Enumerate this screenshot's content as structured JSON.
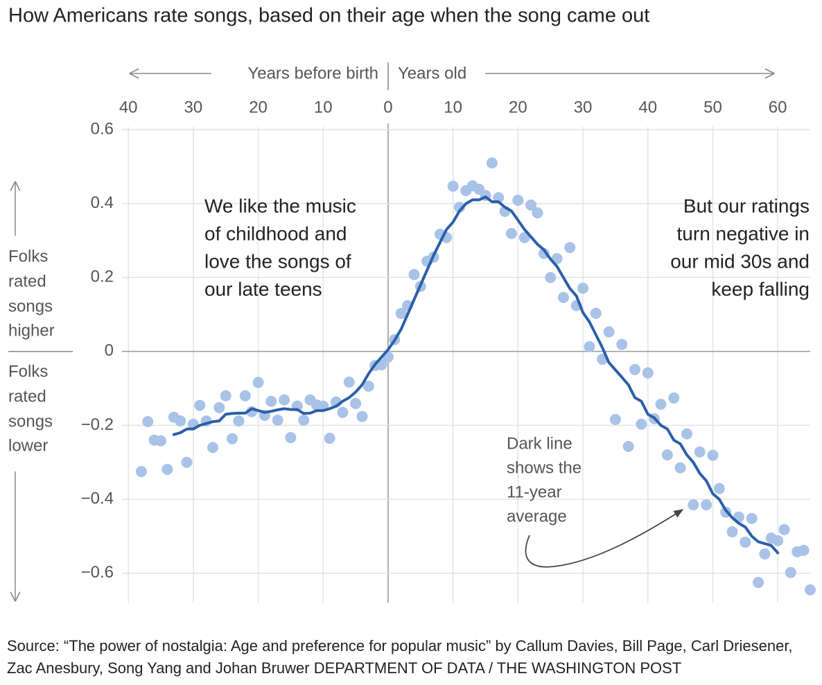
{
  "chart_data": {
    "type": "scatter",
    "title": "How Americans rate songs, based on their age when the song came out",
    "x_label_left": "Years before birth",
    "x_label_right": "Years old",
    "y_label_upper": [
      "Folks",
      "rated",
      "songs",
      "higher"
    ],
    "y_label_lower": [
      "Folks",
      "rated",
      "songs",
      "lower"
    ],
    "annotations": [
      [
        "We like the music",
        "of childhood and",
        "love the songs of",
        "our late teens"
      ],
      [
        "But our ratings",
        "turn negative in",
        "our mid 30s and",
        "keep falling"
      ],
      [
        "Dark line",
        "shows the",
        "11-year",
        "average"
      ]
    ],
    "source": "Source: “The power of nostalgia: Age and preference for popular music” by Callum Davies, Bill Page, Carl Driesener, Zac Anesbury, Song Yang and Johan Bruwer DEPARTMENT OF DATA / THE WASHINGTON POST",
    "xlim": [
      -41,
      65
    ],
    "ylim": [
      -0.68,
      0.6
    ],
    "xticks": [
      {
        "value": -40,
        "label": "40"
      },
      {
        "value": -30,
        "label": "30"
      },
      {
        "value": -20,
        "label": "20"
      },
      {
        "value": -10,
        "label": "10"
      },
      0,
      10,
      20,
      30,
      40,
      50,
      60
    ],
    "yticks": [
      {
        "value": -0.6,
        "label": "−0.6"
      },
      {
        "value": -0.4,
        "label": "−0.4"
      },
      {
        "value": -0.2,
        "label": "−0.2"
      },
      0,
      0.2,
      0.4,
      0.6
    ],
    "grid": true,
    "series": [
      {
        "type": "scatter",
        "color": "#a9c2e7",
        "x": [
          -38,
          -37,
          -36,
          -35,
          -34,
          -33,
          -32,
          -31,
          -30,
          -29,
          -28,
          -27,
          -26,
          -25,
          -24,
          -23,
          -22,
          -21,
          -20,
          -19,
          -18,
          -17,
          -16,
          -15,
          -14,
          -13,
          -12,
          -11,
          -10,
          -9,
          -8,
          -7,
          -6,
          -5,
          -4,
          -3,
          -2,
          -1,
          0,
          1,
          2,
          3,
          4,
          5,
          6,
          7,
          8,
          9,
          10,
          11,
          12,
          13,
          14,
          15,
          16,
          17,
          18,
          19,
          20,
          21,
          22,
          23,
          24,
          25,
          26,
          27,
          28,
          29,
          30,
          31,
          32,
          33,
          34,
          35,
          36,
          37,
          38,
          39,
          40,
          41,
          42,
          43,
          44,
          45,
          46,
          47,
          48,
          49,
          50,
          51,
          52,
          53,
          54,
          55,
          56,
          57,
          58,
          59,
          60,
          61,
          62,
          63,
          64,
          65
        ],
        "values": [
          -0.325,
          -0.19,
          -0.24,
          -0.242,
          -0.319,
          -0.178,
          -0.188,
          -0.3,
          -0.197,
          -0.146,
          -0.188,
          -0.26,
          -0.152,
          -0.12,
          -0.236,
          -0.188,
          -0.12,
          -0.163,
          -0.084,
          -0.173,
          -0.135,
          -0.186,
          -0.131,
          -0.233,
          -0.148,
          -0.186,
          -0.131,
          -0.145,
          -0.148,
          -0.235,
          -0.137,
          -0.165,
          -0.083,
          -0.141,
          -0.176,
          -0.094,
          -0.038,
          -0.036,
          -0.015,
          0.032,
          0.103,
          0.124,
          0.208,
          0.176,
          0.244,
          0.255,
          0.317,
          0.308,
          0.447,
          0.39,
          0.435,
          0.448,
          0.439,
          0.422,
          0.51,
          0.416,
          0.379,
          0.319,
          0.409,
          0.308,
          0.396,
          0.375,
          0.265,
          0.2,
          0.251,
          0.146,
          0.281,
          0.124,
          0.171,
          0.013,
          0.103,
          -0.021,
          0.053,
          -0.184,
          0.019,
          -0.257,
          -0.049,
          -0.197,
          -0.058,
          -0.182,
          -0.143,
          -0.28,
          -0.126,
          -0.315,
          -0.223,
          -0.415,
          -0.272,
          -0.415,
          -0.281,
          -0.371,
          -0.435,
          -0.488,
          -0.448,
          -0.516,
          -0.452,
          -0.625,
          -0.548,
          -0.505,
          -0.512,
          -0.482,
          -0.598,
          -0.542,
          -0.538,
          -0.645
        ]
      },
      {
        "type": "line",
        "color": "#2b5fa8",
        "x": [
          -33,
          -32,
          -31,
          -30,
          -29,
          -28,
          -27,
          -26,
          -25,
          -24,
          -23,
          -22,
          -21,
          -20,
          -19,
          -18,
          -17,
          -16,
          -15,
          -14,
          -13,
          -12,
          -11,
          -10,
          -9,
          -8,
          -7,
          -6,
          -5,
          -4,
          -3,
          -2,
          -1,
          0,
          1,
          2,
          3,
          4,
          5,
          6,
          7,
          8,
          9,
          10,
          11,
          12,
          13,
          14,
          15,
          16,
          17,
          18,
          19,
          20,
          21,
          22,
          23,
          24,
          25,
          26,
          27,
          28,
          29,
          30,
          31,
          32,
          33,
          34,
          35,
          36,
          37,
          38,
          39,
          40,
          41,
          42,
          43,
          44,
          45,
          46,
          47,
          48,
          49,
          50,
          51,
          52,
          53,
          54,
          55,
          56,
          57,
          58,
          59,
          60
        ],
        "values": [
          -0.225,
          -0.22,
          -0.21,
          -0.21,
          -0.2,
          -0.195,
          -0.19,
          -0.188,
          -0.17,
          -0.168,
          -0.167,
          -0.167,
          -0.155,
          -0.16,
          -0.165,
          -0.162,
          -0.158,
          -0.155,
          -0.157,
          -0.157,
          -0.168,
          -0.167,
          -0.16,
          -0.16,
          -0.155,
          -0.148,
          -0.135,
          -0.125,
          -0.11,
          -0.09,
          -0.06,
          -0.035,
          -0.015,
          0.005,
          0.03,
          0.06,
          0.1,
          0.14,
          0.18,
          0.22,
          0.26,
          0.295,
          0.33,
          0.35,
          0.38,
          0.4,
          0.41,
          0.41,
          0.418,
          0.405,
          0.405,
          0.39,
          0.38,
          0.355,
          0.33,
          0.31,
          0.29,
          0.275,
          0.25,
          0.23,
          0.2,
          0.17,
          0.15,
          0.105,
          0.08,
          0.045,
          0.01,
          -0.03,
          -0.05,
          -0.07,
          -0.09,
          -0.125,
          -0.135,
          -0.17,
          -0.18,
          -0.2,
          -0.21,
          -0.24,
          -0.25,
          -0.28,
          -0.3,
          -0.33,
          -0.35,
          -0.385,
          -0.4,
          -0.43,
          -0.45,
          -0.465,
          -0.475,
          -0.5,
          -0.515,
          -0.52,
          -0.525,
          -0.545
        ]
      }
    ]
  }
}
